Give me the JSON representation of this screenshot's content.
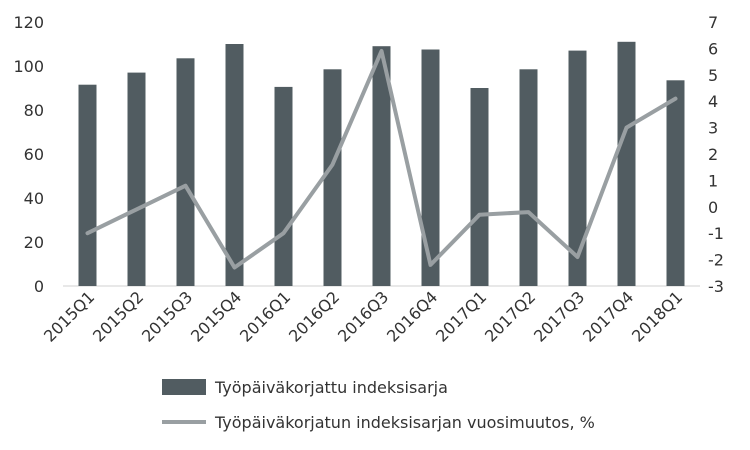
{
  "chart_data": {
    "type": "bar",
    "title": "",
    "xlabel": "",
    "ylabel": "",
    "categories": [
      "2015Q1",
      "2015Q2",
      "2015Q3",
      "2015Q4",
      "2016Q1",
      "2016Q2",
      "2016Q3",
      "2016Q4",
      "2017Q1",
      "2017Q2",
      "2017Q3",
      "2017Q4",
      "2018Q1"
    ],
    "series": [
      {
        "name": "Työpäiväkorjattu indeksisarja",
        "type": "bar",
        "axis": "left",
        "color": "#515c61",
        "values": [
          91.5,
          97,
          103.5,
          110,
          90.5,
          98.5,
          109,
          107.5,
          90,
          98.5,
          107,
          111,
          93.5
        ]
      },
      {
        "name": "Työpäiväkorjatun indeksisarjan vuosimuutos, %",
        "type": "line",
        "axis": "right",
        "color": "#999fa2",
        "values": [
          -1.0,
          -0.1,
          0.8,
          -2.3,
          -1.0,
          1.6,
          5.9,
          -2.2,
          -0.3,
          -0.2,
          -1.9,
          3.0,
          4.1
        ]
      }
    ],
    "y_left": {
      "min": 0,
      "max": 120,
      "step": 20,
      "ticks": [
        "0",
        "20",
        "40",
        "60",
        "80",
        "100",
        "120"
      ]
    },
    "y_right": {
      "min": -3,
      "max": 7,
      "step": 1,
      "ticks": [
        "-3",
        "-2",
        "-1",
        "0",
        "1",
        "2",
        "3",
        "4",
        "5",
        "6",
        "7"
      ]
    },
    "grid": false,
    "legend_position": "bottom"
  }
}
